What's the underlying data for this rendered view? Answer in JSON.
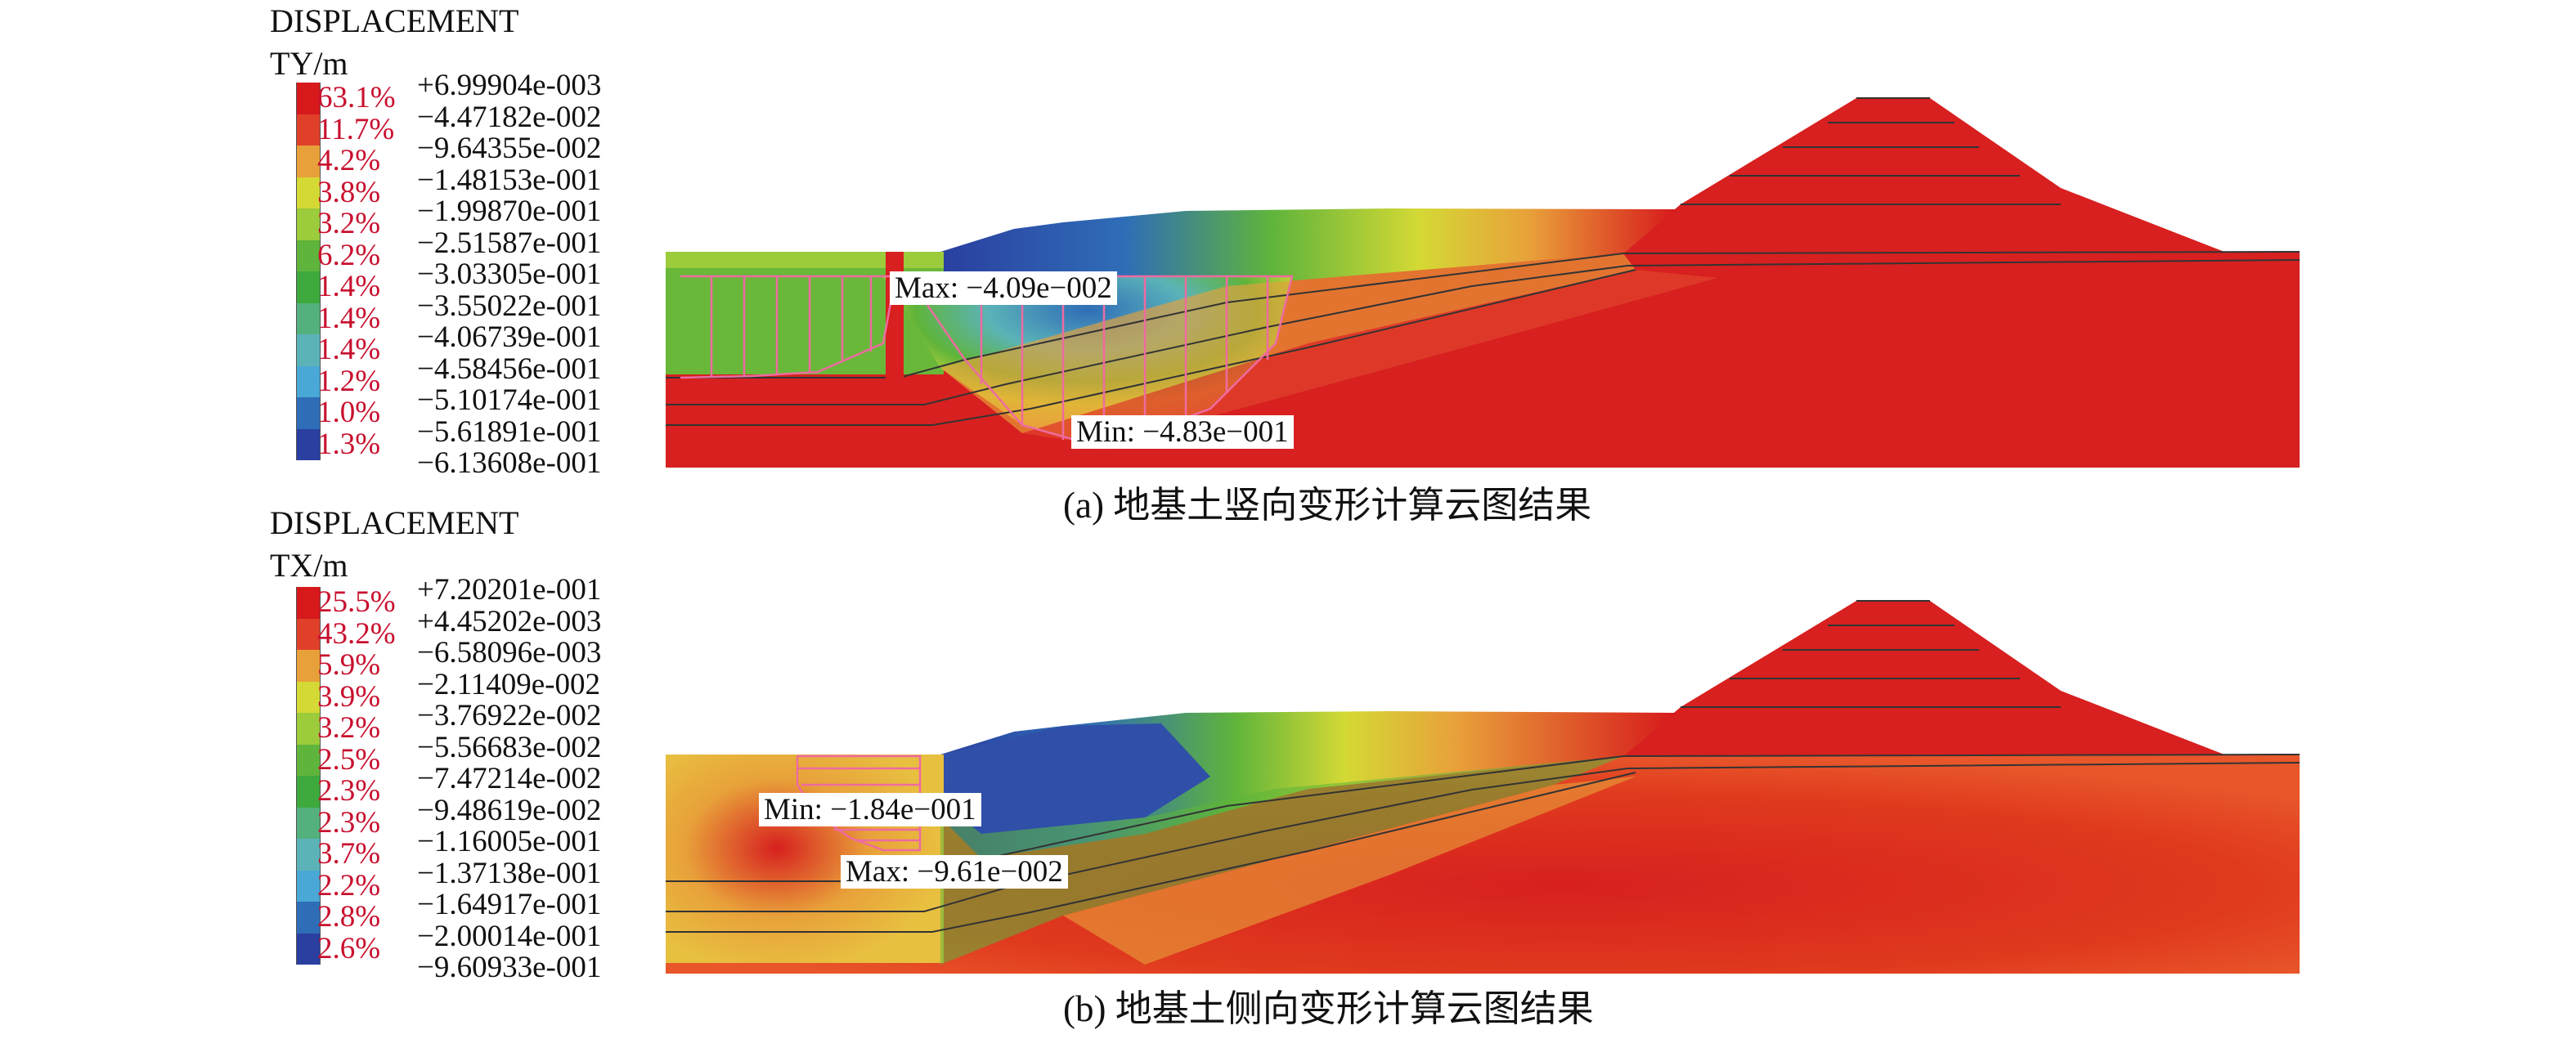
{
  "panels": [
    {
      "id": "a",
      "legend": {
        "title": "DISPLACEMENT",
        "unit": "TY/m",
        "colors": [
          "#d7191c",
          "#e0402a",
          "#e8a13a",
          "#d4d935",
          "#9ccb3c",
          "#5fb43b",
          "#3ea93c",
          "#54b07d",
          "#5bb3b8",
          "#4aa8d6",
          "#2f6db7",
          "#2a3fa0"
        ],
        "percents": [
          "63.1%",
          "11.7%",
          "4.2%",
          "3.8%",
          "3.2%",
          "6.2%",
          "1.4%",
          "1.4%",
          "1.4%",
          "1.2%",
          "1.0%",
          "1.3%"
        ],
        "values": [
          "+6.99904e-003",
          "−4.47182e-002",
          "−9.64355e-002",
          "−1.48153e-001",
          "−1.99870e-001",
          "−2.51587e-001",
          "−3.03305e-001",
          "−3.55022e-001",
          "−4.06739e-001",
          "−4.58456e-001",
          "−5.10174e-001",
          "−5.61891e-001",
          "−6.13608e-001"
        ]
      },
      "annotations": {
        "max": "Max: −4.09e−002",
        "min": "Min: −4.83e−001"
      },
      "caption": "(a) 地基土竖向变形计算云图结果"
    },
    {
      "id": "b",
      "legend": {
        "title": "DISPLACEMENT",
        "unit": "TX/m",
        "colors": [
          "#d7191c",
          "#e0402a",
          "#e8a13a",
          "#d4d935",
          "#9ccb3c",
          "#5fb43b",
          "#3ea93c",
          "#54b07d",
          "#5bb3b8",
          "#4aa8d6",
          "#2f6db7",
          "#2a3fa0"
        ],
        "percents": [
          "25.5%",
          "43.2%",
          "5.9%",
          "3.9%",
          "3.2%",
          "2.5%",
          "2.3%",
          "2.3%",
          "3.7%",
          "2.2%",
          "2.8%",
          "2.6%"
        ],
        "values": [
          "+7.20201e-001",
          "+4.45202e-003",
          "−6.58096e-003",
          "−2.11409e-002",
          "−3.76922e-002",
          "−5.56683e-002",
          "−7.47214e-002",
          "−9.48619e-002",
          "−1.16005e-001",
          "−1.37138e-001",
          "−1.64917e-001",
          "−2.00014e-001",
          "−9.60933e-001"
        ]
      },
      "annotations": {
        "min": "Min: −1.84e−001",
        "max": "Max: −9.61e−002"
      },
      "caption": "(b) 地基土侧向变形计算云图结果"
    }
  ]
}
